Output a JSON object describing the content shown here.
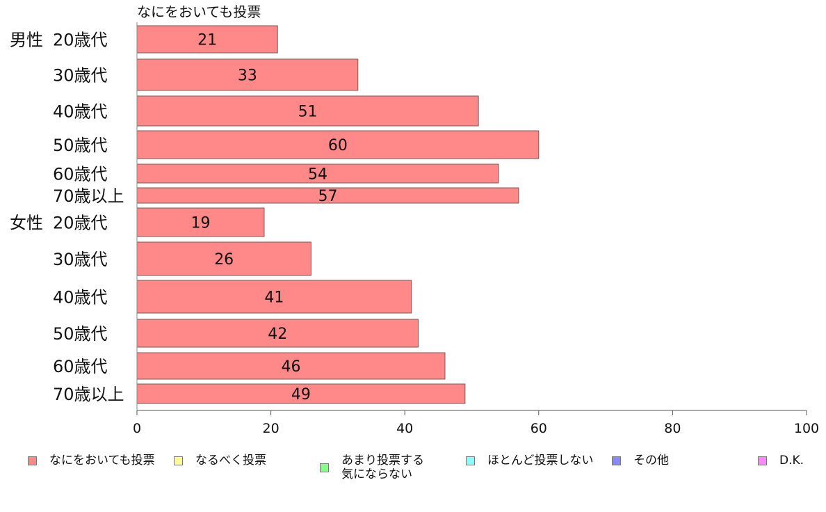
{
  "chart_data": {
    "type": "bar",
    "orientation": "horizontal",
    "title": "なにをおいても投票",
    "groups": [
      {
        "label": "男性",
        "categories": [
          "20歳代",
          "30歳代",
          "40歳代",
          "50歳代",
          "60歳代",
          "70歳以上"
        ],
        "values": [
          21,
          33,
          51,
          60,
          54,
          57
        ]
      },
      {
        "label": "女性",
        "categories": [
          "20歳代",
          "30歳代",
          "40歳代",
          "50歳代",
          "60歳代",
          "70歳以上"
        ],
        "values": [
          19,
          26,
          41,
          42,
          46,
          49
        ]
      }
    ],
    "xlim": [
      0,
      100
    ],
    "xticks": [
      0,
      20,
      40,
      60,
      80,
      100
    ],
    "grid": false,
    "bar_color": "#ff8888",
    "legend_position": "bottom",
    "legend": [
      {
        "label": "なにをおいても投票",
        "color": "#ff8888"
      },
      {
        "label": "なるべく投票",
        "color": "#ffff99"
      },
      {
        "label": "あまり投票する\n気にならない",
        "color": "#88ff88"
      },
      {
        "label": "ほとんど投票しない",
        "color": "#88ffff"
      },
      {
        "label": "その他",
        "color": "#8888ff"
      },
      {
        "label": "D.K.",
        "color": "#ff88ff"
      }
    ]
  }
}
